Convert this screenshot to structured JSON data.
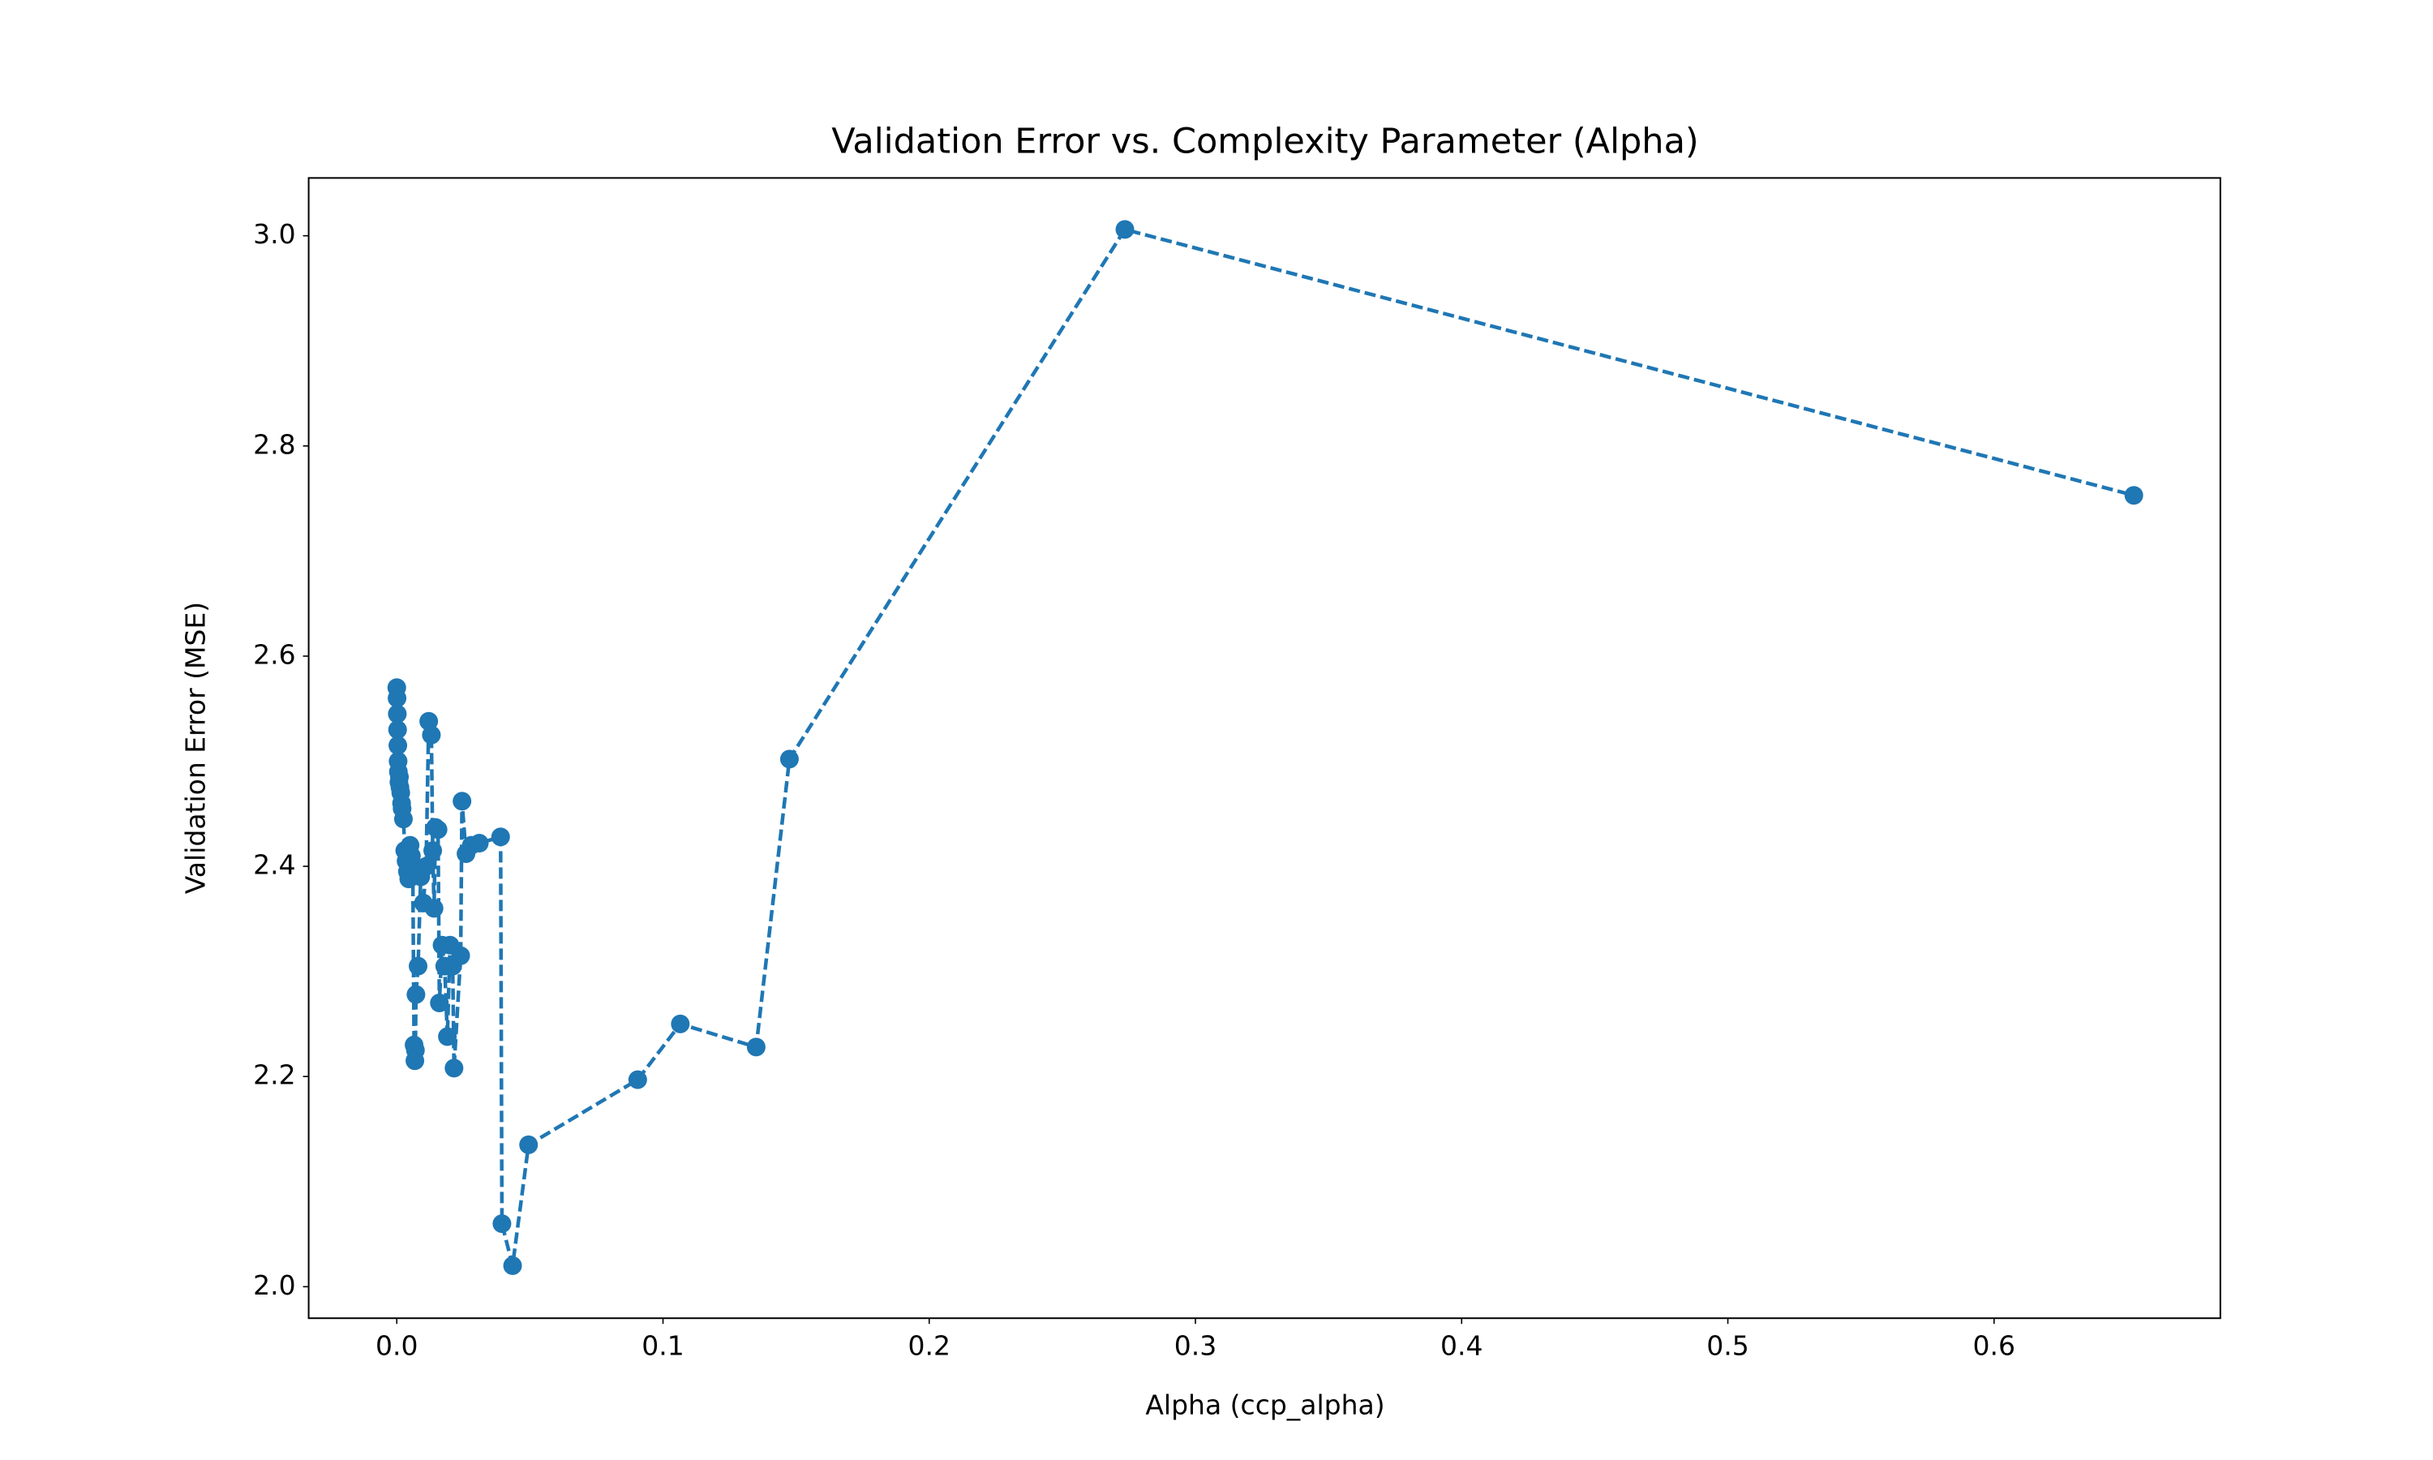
{
  "chart_data": {
    "type": "line",
    "title": "Validation Error vs. Complexity Parameter (Alpha)",
    "x_label": "Alpha (ccp_alpha)",
    "y_label": "Validation Error (MSE)",
    "x": [
      0.0,
      0.0001,
      0.0002,
      0.0003,
      0.0004,
      0.0005,
      0.0006,
      0.0008,
      0.001,
      0.0012,
      0.0015,
      0.0018,
      0.002,
      0.0025,
      0.003,
      0.0035,
      0.004,
      0.0045,
      0.005,
      0.0055,
      0.006,
      0.0065,
      0.0068,
      0.007,
      0.0072,
      0.008,
      0.009,
      0.01,
      0.011,
      0.012,
      0.013,
      0.0135,
      0.014,
      0.0145,
      0.0155,
      0.016,
      0.017,
      0.018,
      0.019,
      0.02,
      0.021,
      0.0215,
      0.024,
      0.0245,
      0.026,
      0.028,
      0.031,
      0.039,
      0.0395,
      0.0435,
      0.0495,
      0.0905,
      0.1065,
      0.135,
      0.1475,
      0.2735,
      0.6525
    ],
    "values": [
      2.57,
      2.56,
      2.545,
      2.53,
      2.515,
      2.5,
      2.49,
      2.48,
      2.485,
      2.475,
      2.47,
      2.46,
      2.455,
      2.445,
      2.415,
      2.405,
      2.395,
      2.388,
      2.42,
      2.41,
      2.4,
      2.23,
      2.215,
      2.225,
      2.278,
      2.305,
      2.39,
      2.365,
      2.4,
      2.538,
      2.525,
      2.415,
      2.36,
      2.437,
      2.435,
      2.27,
      2.325,
      2.305,
      2.238,
      2.325,
      2.305,
      2.208,
      2.315,
      2.462,
      2.412,
      2.42,
      2.422,
      2.428,
      2.06,
      2.02,
      2.135,
      2.197,
      2.25,
      2.228,
      2.502,
      3.006,
      2.753
    ],
    "color": "#1f77b4",
    "line_style": "dashed",
    "markers": true,
    "xlim": [
      -0.0331,
      0.685
    ],
    "ylim": [
      1.97,
      3.055
    ],
    "xticks": [
      {
        "value": 0,
        "label": "0.0"
      },
      0.1,
      0.2,
      0.3,
      0.4,
      0.5,
      0.6
    ],
    "yticks": [
      {
        "value": 2,
        "label": "2.0"
      },
      2.2,
      2.4,
      2.6,
      2.8,
      {
        "value": 3,
        "label": "3.0"
      }
    ]
  }
}
